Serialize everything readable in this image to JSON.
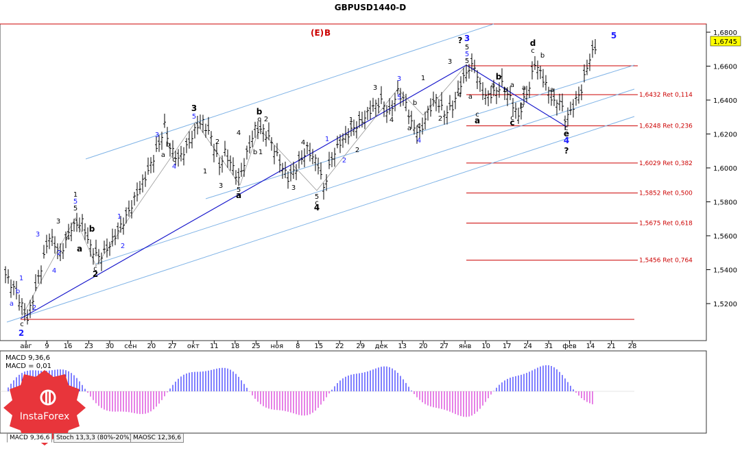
{
  "title": "GBPUSD1440-D",
  "chart_data": {
    "type": "candlestick",
    "title": "GBPUSD1440-D",
    "ylim": [
      1.503,
      1.685
    ],
    "last_price": "1,6745",
    "x_ticks": [
      "авг",
      "9",
      "16",
      "23",
      "30",
      "сен",
      "20",
      "27",
      "окт",
      "11",
      "18",
      "25",
      "ноя",
      "8",
      "15",
      "22",
      "29",
      "дек",
      "13",
      "20",
      "27",
      "янв",
      "10",
      "17",
      "24",
      "31",
      "фев",
      "14",
      "21",
      "28"
    ],
    "y_ticks": [
      {
        "value": 1.68,
        "label": "1,6800"
      },
      {
        "value": 1.66,
        "label": "1,6600"
      },
      {
        "value": 1.64,
        "label": "1,6400"
      },
      {
        "value": 1.62,
        "label": "1,6200"
      },
      {
        "value": 1.6,
        "label": "1,6000"
      },
      {
        "value": 1.58,
        "label": "1,5800"
      },
      {
        "value": 1.56,
        "label": "1,5600"
      },
      {
        "value": 1.54,
        "label": "1,5400"
      },
      {
        "value": 1.52,
        "label": "1,5200"
      }
    ],
    "fib_levels": [
      {
        "value": 1.6432,
        "label": "1,6432 Ret 0,114"
      },
      {
        "value": 1.6248,
        "label": "1,6248 Ret 0,236"
      },
      {
        "value": 1.6029,
        "label": "1,6029 Ret 0,382"
      },
      {
        "value": 1.5852,
        "label": "1,5852 Ret 0,500"
      },
      {
        "value": 1.5675,
        "label": "1,5675 Ret 0,618"
      },
      {
        "value": 1.5456,
        "label": "1,5456 Ret 0,764"
      }
    ],
    "close_path": [
      [
        0,
        1.537
      ],
      [
        4,
        1.526
      ],
      [
        8,
        1.511
      ],
      [
        12,
        1.535
      ],
      [
        16,
        1.56
      ],
      [
        20,
        1.549
      ],
      [
        24,
        1.565
      ],
      [
        28,
        1.568
      ],
      [
        31,
        1.553
      ],
      [
        34,
        1.547
      ],
      [
        37,
        1.552
      ],
      [
        40,
        1.56
      ],
      [
        44,
        1.571
      ],
      [
        48,
        1.585
      ],
      [
        52,
        1.598
      ],
      [
        56,
        1.614
      ],
      [
        58,
        1.625
      ],
      [
        60,
        1.612
      ],
      [
        63,
        1.605
      ],
      [
        66,
        1.612
      ],
      [
        70,
        1.625
      ],
      [
        72,
        1.627
      ],
      [
        75,
        1.618
      ],
      [
        78,
        1.601
      ],
      [
        80,
        1.609
      ],
      [
        83,
        1.6
      ],
      [
        85,
        1.593
      ],
      [
        88,
        1.608
      ],
      [
        91,
        1.623
      ],
      [
        94,
        1.622
      ],
      [
        97,
        1.615
      ],
      [
        100,
        1.603
      ],
      [
        103,
        1.594
      ],
      [
        106,
        1.6
      ],
      [
        110,
        1.611
      ],
      [
        114,
        1.602
      ],
      [
        116,
        1.588
      ],
      [
        119,
        1.606
      ],
      [
        122,
        1.615
      ],
      [
        126,
        1.622
      ],
      [
        130,
        1.628
      ],
      [
        134,
        1.636
      ],
      [
        137,
        1.639
      ],
      [
        140,
        1.632
      ],
      [
        143,
        1.645
      ],
      [
        146,
        1.638
      ],
      [
        148,
        1.626
      ],
      [
        151,
        1.62
      ],
      [
        154,
        1.633
      ],
      [
        157,
        1.641
      ],
      [
        160,
        1.632
      ],
      [
        163,
        1.636
      ],
      [
        166,
        1.65
      ],
      [
        169,
        1.659
      ],
      [
        171,
        1.66
      ],
      [
        173,
        1.648
      ],
      [
        175,
        1.642
      ],
      [
        178,
        1.644
      ],
      [
        181,
        1.649
      ],
      [
        184,
        1.641
      ],
      [
        187,
        1.63
      ],
      [
        189,
        1.64
      ],
      [
        191,
        1.648
      ],
      [
        193,
        1.662
      ],
      [
        195,
        1.656
      ],
      [
        197,
        1.649
      ],
      [
        200,
        1.638
      ],
      [
        202,
        1.64
      ],
      [
        204,
        1.629
      ],
      [
        206,
        1.633
      ],
      [
        208,
        1.64
      ],
      [
        210,
        1.646
      ],
      [
        212,
        1.66
      ],
      [
        214,
        1.668
      ],
      [
        216,
        1.675
      ]
    ],
    "macd": {
      "label": "MACD 9,36,6",
      "value_label": "MACD = 0,01"
    },
    "annotations": [
      {
        "text": "(E)",
        "color": "#cc0000"
      },
      {
        "text": "B",
        "color": "#cc0000"
      }
    ]
  },
  "wave_labels": [
    {
      "t": "a",
      "x": 17,
      "y": 446,
      "c": "b"
    },
    {
      "t": "b",
      "x": 26,
      "y": 428,
      "c": "b"
    },
    {
      "t": "c",
      "x": 32,
      "y": 476,
      "c": "k"
    },
    {
      "t": "2",
      "x": 31,
      "y": 490,
      "c": "b",
      "big": true
    },
    {
      "t": "1",
      "x": 31,
      "y": 409,
      "c": "b"
    },
    {
      "t": "2",
      "x": 50,
      "y": 452,
      "c": "b"
    },
    {
      "t": "3",
      "x": 55,
      "y": 345,
      "c": "b"
    },
    {
      "t": "4",
      "x": 79,
      "y": 398,
      "c": "b"
    },
    {
      "t": "3",
      "x": 85,
      "y": 326,
      "c": "k"
    },
    {
      "t": "2",
      "x": 86,
      "y": 372,
      "c": "b"
    },
    {
      "t": "4",
      "x": 99,
      "y": 350,
      "c": "k"
    },
    {
      "t": "1",
      "x": 110,
      "y": 287,
      "c": "k"
    },
    {
      "t": "5",
      "x": 110,
      "y": 297,
      "c": "b"
    },
    {
      "t": "5",
      "x": 110,
      "y": 307,
      "c": "k"
    },
    {
      "t": "b",
      "x": 134,
      "y": 338,
      "c": "k",
      "big": true
    },
    {
      "t": "a",
      "x": 116,
      "y": 367,
      "c": "k",
      "big": true
    },
    {
      "t": "c",
      "x": 139,
      "y": 395,
      "c": "k"
    },
    {
      "t": "2",
      "x": 139,
      "y": 404,
      "c": "k",
      "big": true
    },
    {
      "t": "1",
      "x": 174,
      "y": 319,
      "c": "b"
    },
    {
      "t": "2",
      "x": 179,
      "y": 362,
      "c": "b"
    },
    {
      "t": "3",
      "x": 229,
      "y": 200,
      "c": "b"
    },
    {
      "t": "c",
      "x": 254,
      "y": 236,
      "c": "k"
    },
    {
      "t": "4",
      "x": 254,
      "y": 246,
      "c": "b"
    },
    {
      "t": "a",
      "x": 238,
      "y": 229,
      "c": "k"
    },
    {
      "t": "b",
      "x": 245,
      "y": 214,
      "c": "k"
    },
    {
      "t": "3",
      "x": 283,
      "y": 162,
      "c": "k",
      "big": true
    },
    {
      "t": "5",
      "x": 283,
      "y": 173,
      "c": "b"
    },
    {
      "t": "1",
      "x": 299,
      "y": 253,
      "c": "k"
    },
    {
      "t": "2",
      "x": 317,
      "y": 210,
      "c": "k"
    },
    {
      "t": "3",
      "x": 322,
      "y": 274,
      "c": "k"
    },
    {
      "t": "4",
      "x": 348,
      "y": 197,
      "c": "k"
    },
    {
      "t": "5",
      "x": 348,
      "y": 280,
      "c": "k"
    },
    {
      "t": "a",
      "x": 348,
      "y": 289,
      "c": "k",
      "big": true
    },
    {
      "t": "b",
      "x": 378,
      "y": 167,
      "c": "k",
      "big": true
    },
    {
      "t": "c",
      "x": 378,
      "y": 177,
      "c": "k"
    },
    {
      "t": "2",
      "x": 388,
      "y": 177,
      "c": "k"
    },
    {
      "t": "b",
      "x": 372,
      "y": 225,
      "c": "k"
    },
    {
      "t": "1",
      "x": 380,
      "y": 225,
      "c": "k"
    },
    {
      "t": "4",
      "x": 442,
      "y": 211,
      "c": "k"
    },
    {
      "t": "3",
      "x": 428,
      "y": 277,
      "c": "k"
    },
    {
      "t": "5",
      "x": 462,
      "y": 290,
      "c": "k"
    },
    {
      "t": "c",
      "x": 462,
      "y": 299,
      "c": "k"
    },
    {
      "t": "4",
      "x": 462,
      "y": 307,
      "c": "k",
      "big": true
    },
    {
      "t": "1",
      "x": 477,
      "y": 206,
      "c": "b"
    },
    {
      "t": "2",
      "x": 502,
      "y": 237,
      "c": "b"
    },
    {
      "t": "1",
      "x": 512,
      "y": 178,
      "c": "k"
    },
    {
      "t": "2",
      "x": 521,
      "y": 222,
      "c": "k"
    },
    {
      "t": "3",
      "x": 547,
      "y": 131,
      "c": "k"
    },
    {
      "t": "4",
      "x": 571,
      "y": 178,
      "c": "k"
    },
    {
      "t": "3",
      "x": 582,
      "y": 118,
      "c": "b"
    },
    {
      "t": "5",
      "x": 582,
      "y": 145,
      "c": "b"
    },
    {
      "t": "1",
      "x": 617,
      "y": 117,
      "c": "k"
    },
    {
      "t": "b",
      "x": 605,
      "y": 153,
      "c": "k"
    },
    {
      "t": "a",
      "x": 597,
      "y": 190,
      "c": "k"
    },
    {
      "t": "c",
      "x": 611,
      "y": 186,
      "c": "k"
    },
    {
      "t": "4",
      "x": 611,
      "y": 208,
      "c": "b"
    },
    {
      "t": "2",
      "x": 642,
      "y": 176,
      "c": "k"
    },
    {
      "t": "3",
      "x": 656,
      "y": 93,
      "c": "k"
    },
    {
      "t": "4",
      "x": 670,
      "y": 142,
      "c": "k"
    },
    {
      "t": "?",
      "x": 671,
      "y": 63,
      "c": "k",
      "big": true
    },
    {
      "t": "3",
      "x": 681,
      "y": 60,
      "c": "b",
      "big": true
    },
    {
      "t": "5",
      "x": 681,
      "y": 72,
      "c": "k"
    },
    {
      "t": "5",
      "x": 681,
      "y": 82,
      "c": "b"
    },
    {
      "t": "5",
      "x": 681,
      "y": 92,
      "c": "k"
    },
    {
      "t": "a",
      "x": 686,
      "y": 144,
      "c": "k"
    },
    {
      "t": "c",
      "x": 696,
      "y": 170,
      "c": "k"
    },
    {
      "t": "a",
      "x": 696,
      "y": 180,
      "c": "k",
      "big": true
    },
    {
      "t": "b",
      "x": 727,
      "y": 116,
      "c": "k",
      "big": true
    },
    {
      "t": "a",
      "x": 719,
      "y": 127,
      "c": "k"
    },
    {
      "t": "b",
      "x": 737,
      "y": 134,
      "c": "k"
    },
    {
      "t": "a",
      "x": 747,
      "y": 127,
      "c": "k"
    },
    {
      "t": "c",
      "x": 747,
      "y": 175,
      "c": "k"
    },
    {
      "t": "c",
      "x": 747,
      "y": 183,
      "c": "k",
      "big": true
    },
    {
      "t": "b",
      "x": 761,
      "y": 157,
      "c": "k"
    },
    {
      "t": "a",
      "x": 764,
      "y": 131,
      "c": "k"
    },
    {
      "t": "d",
      "x": 777,
      "y": 67,
      "c": "k",
      "big": true
    },
    {
      "t": "c",
      "x": 777,
      "y": 77,
      "c": "k"
    },
    {
      "t": "b",
      "x": 791,
      "y": 84,
      "c": "k"
    },
    {
      "t": "a",
      "x": 805,
      "y": 134,
      "c": "k"
    },
    {
      "t": "c",
      "x": 826,
      "y": 190,
      "c": "k"
    },
    {
      "t": "e",
      "x": 826,
      "y": 199,
      "c": "k",
      "big": true
    },
    {
      "t": "4",
      "x": 826,
      "y": 209,
      "c": "b",
      "big": true
    },
    {
      "t": "?",
      "x": 826,
      "y": 224,
      "c": "k",
      "big": true
    },
    {
      "t": "5",
      "x": 895,
      "y": 56,
      "c": "b",
      "big": true
    }
  ],
  "tabs": [
    {
      "label": "MACD 9,36,6"
    },
    {
      "label": "Stoch 13,3,3 (80%-20%)"
    },
    {
      "label": "MAOSC 12,36,6"
    }
  ],
  "logo_text": "InstaForex"
}
